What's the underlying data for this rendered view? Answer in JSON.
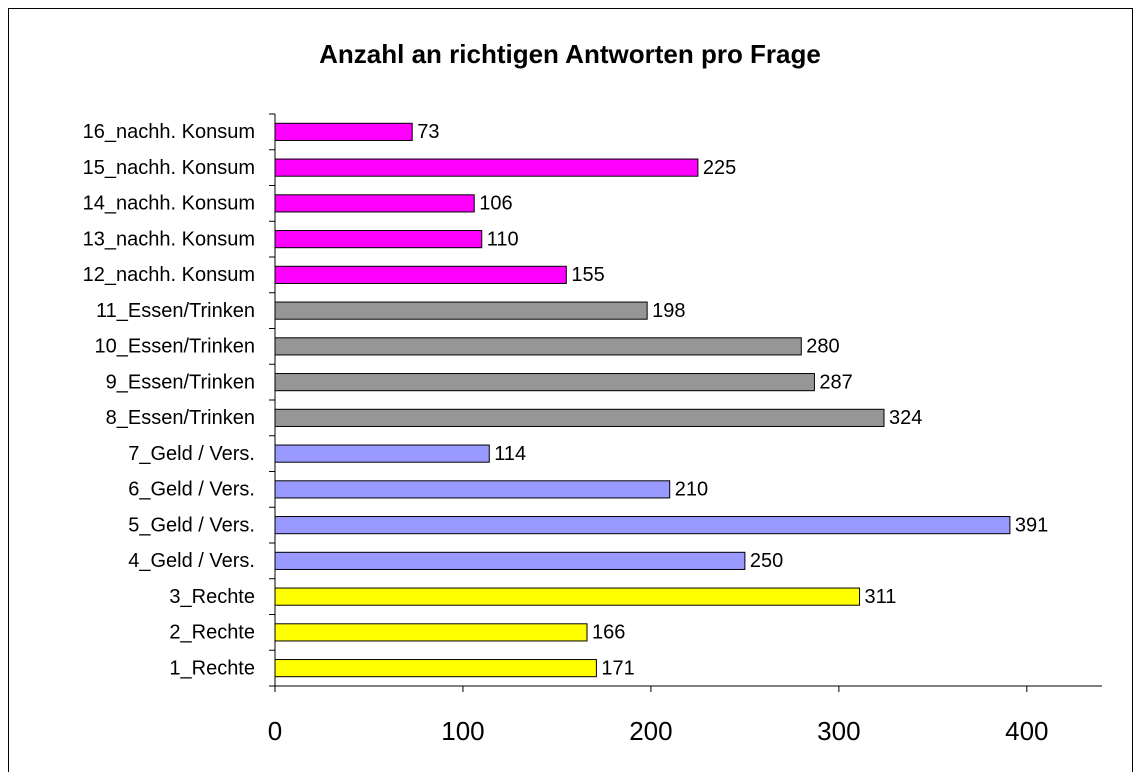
{
  "chart_data": {
    "type": "barh",
    "title": "Anzahl an richtigen Antworten pro Frage",
    "categories": [
      "1_Rechte",
      "2_Rechte",
      "3_Rechte",
      "4_Geld / Vers.",
      "5_Geld / Vers.",
      "6_Geld / Vers.",
      "7_Geld / Vers.",
      "8_Essen/Trinken",
      "9_Essen/Trinken",
      "10_Essen/Trinken",
      "11_Essen/Trinken",
      "12_nachh. Konsum",
      "13_nachh. Konsum",
      "14_nachh. Konsum",
      "15_nachh. Konsum",
      "16_nachh. Konsum"
    ],
    "values": [
      171,
      166,
      311,
      250,
      391,
      210,
      114,
      324,
      287,
      280,
      198,
      155,
      110,
      106,
      225,
      73
    ],
    "colors": [
      "#ffff00",
      "#ffff00",
      "#ffff00",
      "#9999ff",
      "#9999ff",
      "#9999ff",
      "#9999ff",
      "#969696",
      "#969696",
      "#969696",
      "#969696",
      "#ff00ff",
      "#ff00ff",
      "#ff00ff",
      "#ff00ff",
      "#ff00ff"
    ],
    "xlim": [
      0,
      440
    ],
    "xticks": [
      0,
      100,
      200,
      300,
      400
    ],
    "grid": false
  }
}
